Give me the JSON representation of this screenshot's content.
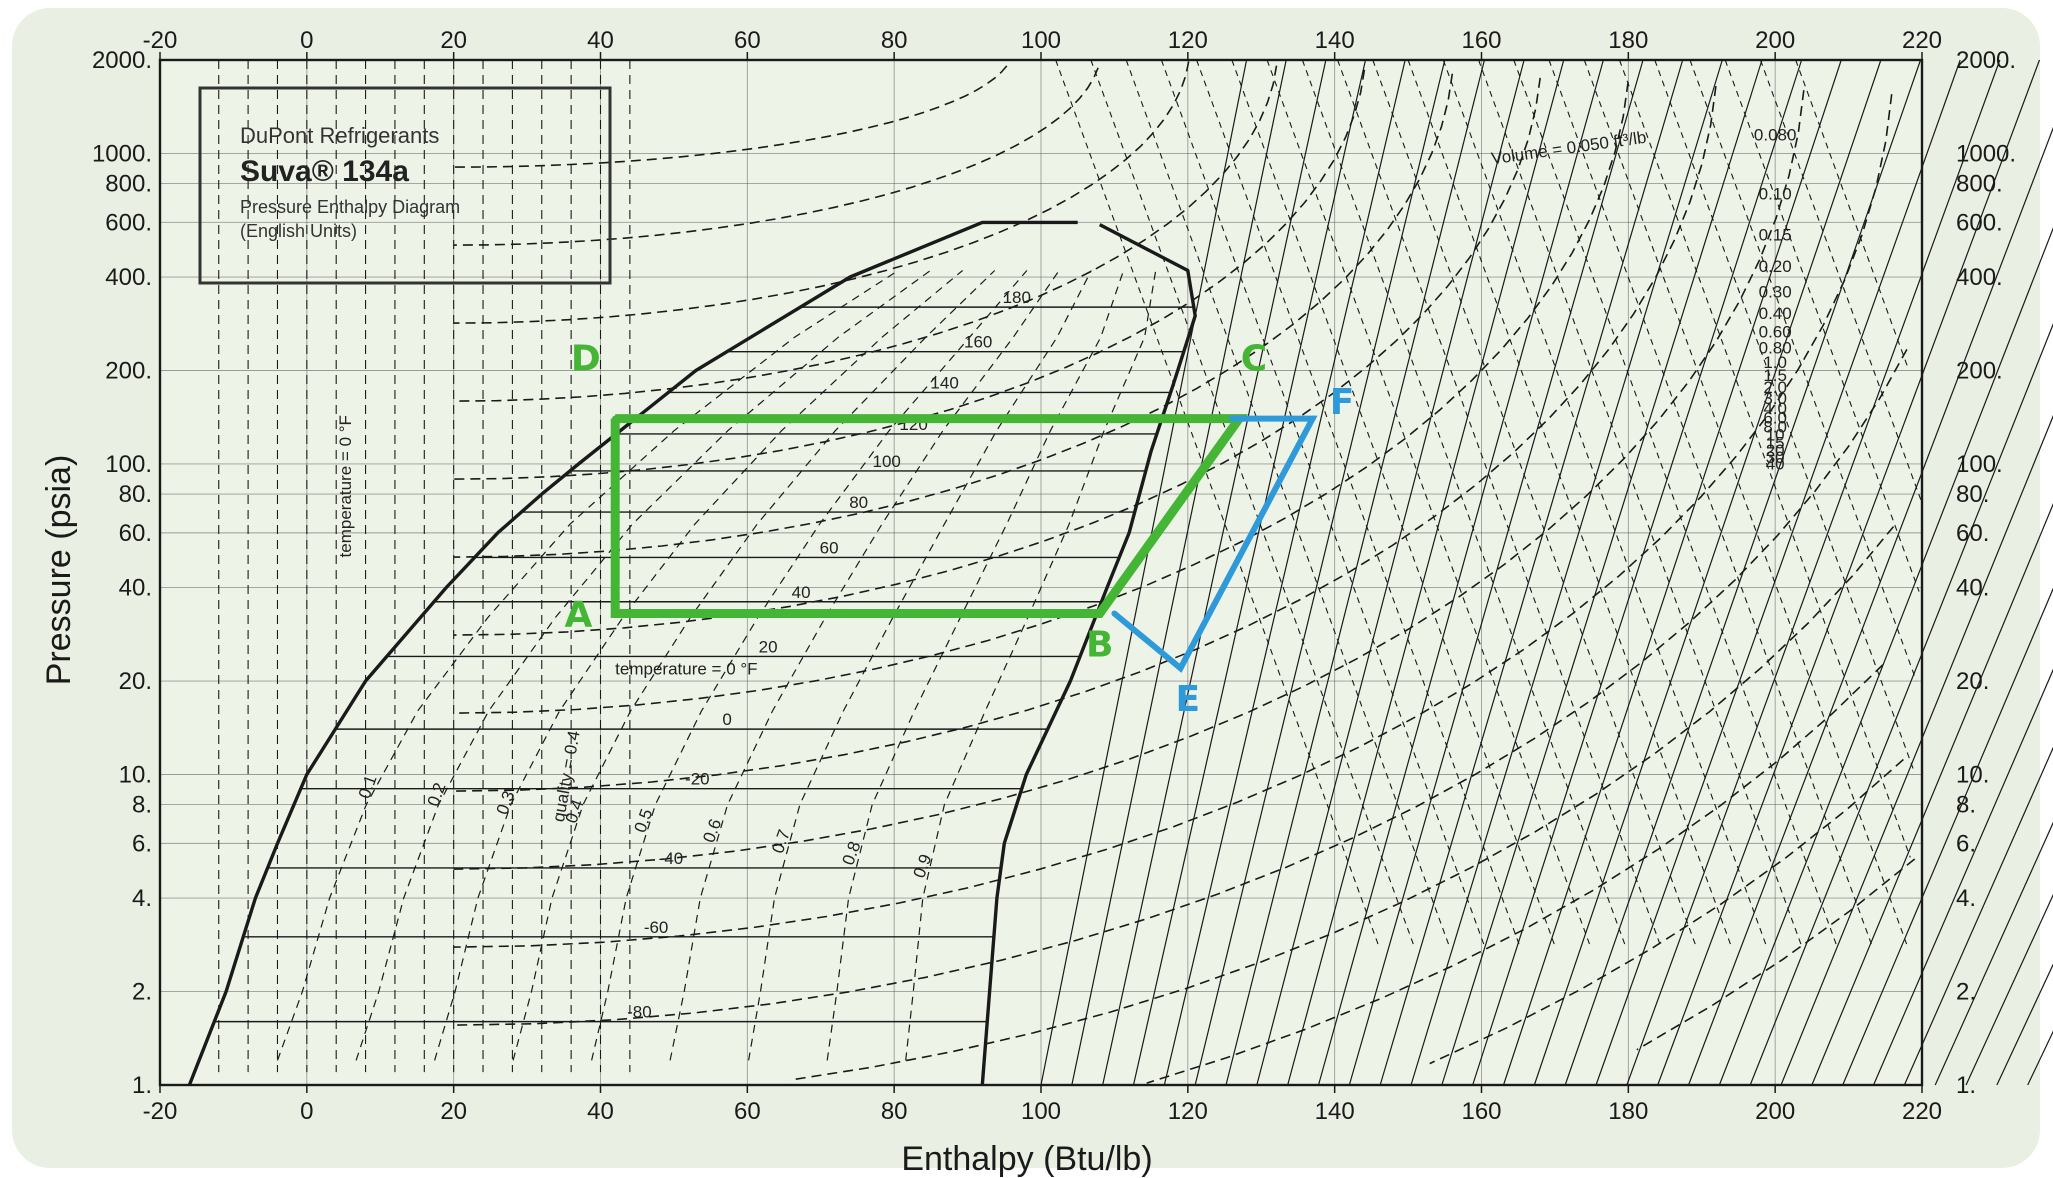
{
  "chart_data": {
    "type": "line",
    "title_box": {
      "line1": "DuPont Refrigerants",
      "line2": "Suva® 134a",
      "line3": "Pressure Enthalpy Diagram",
      "line4": "(English Units)"
    },
    "xlabel": "Enthalpy (Btu/lb)",
    "ylabel": "Pressure (psia)",
    "x_scale": "linear",
    "y_scale": "log",
    "xlim": [
      -20,
      220
    ],
    "ylim": [
      1,
      2000
    ],
    "x_ticks": [
      -20,
      0,
      20,
      40,
      60,
      80,
      100,
      120,
      140,
      160,
      180,
      200,
      220
    ],
    "y_ticks": [
      {
        "value": 1,
        "label": "1."
      },
      {
        "value": 2,
        "label": "2."
      },
      {
        "value": 4,
        "label": "4."
      },
      {
        "value": 6,
        "label": "6."
      },
      {
        "value": 8,
        "label": "8."
      },
      {
        "value": 10,
        "label": "10."
      },
      {
        "value": 20,
        "label": "20."
      },
      {
        "value": 40,
        "label": "40."
      },
      {
        "value": 60,
        "label": "60."
      },
      {
        "value": 80,
        "label": "80."
      },
      {
        "value": 100,
        "label": "100."
      },
      {
        "value": 200,
        "label": "200."
      },
      {
        "value": 400,
        "label": "400."
      },
      {
        "value": 600,
        "label": "600."
      },
      {
        "value": 800,
        "label": "800."
      },
      {
        "value": 1000,
        "label": "1000."
      },
      {
        "value": 2000,
        "label": "2000."
      }
    ],
    "grid": true,
    "colors": {
      "background": "#e9efe2",
      "plot_bg": "#eef3e8",
      "ink": "#1a1a1a",
      "grid": "#555555",
      "green_cycle": "#44b534",
      "blue_cycle": "#2e9ad9"
    },
    "saturation_dome": {
      "liquid_line": [
        [
          -16,
          1
        ],
        [
          -11,
          2
        ],
        [
          -7,
          4
        ],
        [
          -4,
          6
        ],
        [
          0,
          10
        ],
        [
          8,
          20
        ],
        [
          19,
          40
        ],
        [
          26,
          60
        ],
        [
          32,
          80
        ],
        [
          37,
          100
        ],
        [
          53,
          200
        ],
        [
          74,
          400
        ],
        [
          92,
          600
        ],
        [
          105,
          600
        ]
      ],
      "vapor_line": [
        [
          108,
          590
        ],
        [
          120,
          420
        ],
        [
          121,
          300
        ],
        [
          118,
          180
        ],
        [
          115,
          110
        ],
        [
          112,
          60
        ],
        [
          109,
          40
        ],
        [
          104,
          20
        ],
        [
          98,
          10
        ],
        [
          95,
          6
        ],
        [
          94,
          4
        ],
        [
          93,
          2
        ],
        [
          92,
          1
        ]
      ]
    },
    "isotherm_labels": [
      "180",
      "160",
      "140",
      "120",
      "100",
      "80",
      "60",
      "40",
      "20",
      "0",
      "-20",
      "-40",
      "-60",
      "-80"
    ],
    "right_volume_labels": [
      "Volume = 0.050 ft³/lb",
      "0.080",
      "0.10",
      "0.15",
      "0.20",
      "0.30",
      "0.40",
      "0.60",
      "0.80",
      "1.0",
      "1.5",
      "2.0",
      "3.0",
      "4.0",
      "6.0",
      "8.0",
      "10",
      "15",
      "20",
      "30",
      "40"
    ],
    "top_right_volume_label": "Volume = 0.050 ft³/lb",
    "quality_labels": [
      "0.1",
      "0.2",
      "0.3",
      "0.4",
      "0.5",
      "0.6",
      "0.7",
      "0.8",
      "0.9"
    ],
    "temperature_label_1": "temperature = 0 °F",
    "temperature_label_2": "temperature = 0 °F",
    "quality_label": "quality = 0.4",
    "series": [
      {
        "name": "cycle-green",
        "color": "#44b534",
        "points": [
          [
            42,
            140
          ],
          [
            127,
            140
          ],
          [
            108,
            33
          ],
          [
            42,
            33
          ],
          [
            42,
            140
          ]
        ],
        "labels": [
          {
            "text": "D",
            "x": 38,
            "y": 200
          },
          {
            "text": "C",
            "x": 129,
            "y": 200
          },
          {
            "text": "B",
            "x": 108,
            "y": 24
          },
          {
            "text": "A",
            "x": 37,
            "y": 30
          }
        ]
      },
      {
        "name": "cycle-blue",
        "color": "#2e9ad9",
        "points": [
          [
            126,
            140
          ],
          [
            137,
            140
          ],
          [
            119,
            22
          ],
          [
            110,
            33
          ]
        ],
        "labels": [
          {
            "text": "F",
            "x": 141,
            "y": 145
          },
          {
            "text": "E",
            "x": 120,
            "y": 16
          }
        ]
      }
    ]
  }
}
